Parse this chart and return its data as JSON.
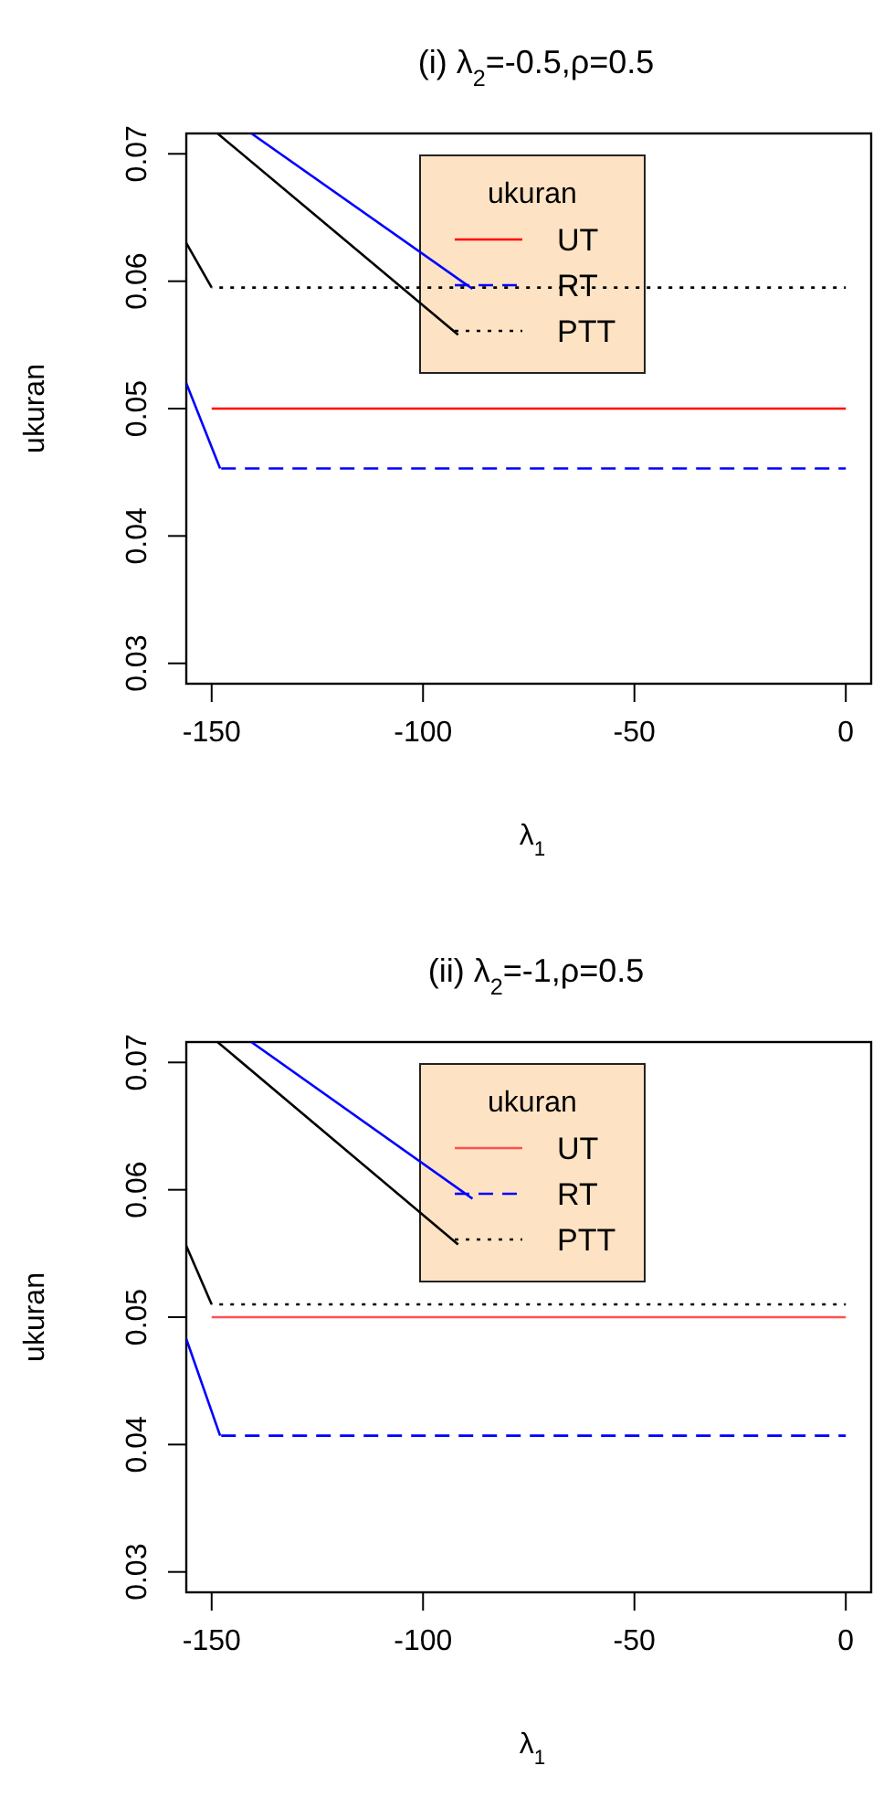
{
  "chart_data": [
    {
      "type": "line",
      "title": "(i) λ$_{2}$=-0.5,ρ=0.5",
      "xlabel": "λ$_{1}$",
      "ylabel": "ukuran",
      "legend_title": "ukuran",
      "legend": "top",
      "xlim": [
        -156,
        6
      ],
      "ylim": [
        0.0284,
        0.0716
      ],
      "xticks": [
        -150,
        -100,
        -50,
        0
      ],
      "yticks": [
        0.03,
        0.04,
        0.05,
        0.06,
        0.07
      ],
      "grid": false,
      "series": [
        {
          "name": "UT",
          "color": "#ff0000",
          "line_style": "solid",
          "x": [
            -150,
            0
          ],
          "values": [
            0.05,
            0.05
          ]
        },
        {
          "name": "RT",
          "color": "#0000ff",
          "line_style": "dashed",
          "x": [
            -148,
            0
          ],
          "values": [
            0.0453,
            0.0453
          ]
        },
        {
          "name": "PTT",
          "color": "#000000",
          "line_style": "dotted",
          "x": [
            -150,
            0
          ],
          "values": [
            0.0595,
            0.0595
          ]
        },
        {
          "color": "#0000ff",
          "line_style": "solid",
          "x": [
            -156,
            -148
          ],
          "values": [
            0.052,
            0.0453
          ]
        },
        {
          "color": "#000000",
          "line_style": "solid",
          "x": [
            -156,
            -150
          ],
          "values": [
            0.063,
            0.0595
          ]
        },
        {
          "color": "#0000ff",
          "line_style": "solid",
          "x": [
            -140.6,
            -88.3
          ],
          "values": [
            0.0716,
            0.0594
          ]
        },
        {
          "color": "#000000",
          "line_style": "solid",
          "x": [
            -148.6,
            -91.7
          ],
          "values": [
            0.0716,
            0.0558
          ]
        }
      ]
    },
    {
      "type": "line",
      "title": "(ii) λ$_{2}$=-1,ρ=0.5",
      "xlabel": "λ$_{1}$",
      "ylabel": "ukuran",
      "legend_title": "ukuran",
      "legend": "top",
      "xlim": [
        -156,
        6
      ],
      "ylim": [
        0.0284,
        0.0716
      ],
      "xticks": [
        -150,
        -100,
        -50,
        0
      ],
      "yticks": [
        0.03,
        0.04,
        0.05,
        0.06,
        0.07
      ],
      "grid": false,
      "series": [
        {
          "name": "UT",
          "color": "#ff5050",
          "line_style": "solid",
          "x": [
            -150,
            0
          ],
          "values": [
            0.05,
            0.05
          ]
        },
        {
          "name": "RT",
          "color": "#0000ff",
          "line_style": "dashed",
          "x": [
            -148,
            0
          ],
          "values": [
            0.0407,
            0.0407
          ]
        },
        {
          "name": "PTT",
          "color": "#000000",
          "line_style": "dotted",
          "x": [
            -150,
            0
          ],
          "values": [
            0.051,
            0.051
          ]
        },
        {
          "color": "#0000ff",
          "line_style": "solid",
          "x": [
            -156,
            -148
          ],
          "values": [
            0.0483,
            0.0407
          ]
        },
        {
          "color": "#000000",
          "line_style": "solid",
          "x": [
            -156,
            -150
          ],
          "values": [
            0.0556,
            0.051
          ]
        },
        {
          "color": "#0000ff",
          "line_style": "solid",
          "x": [
            -140.6,
            -88.3
          ],
          "values": [
            0.0716,
            0.0593
          ]
        },
        {
          "color": "#000000",
          "line_style": "solid",
          "x": [
            -148.6,
            -91.7
          ],
          "values": [
            0.0716,
            0.0557
          ]
        }
      ]
    }
  ]
}
